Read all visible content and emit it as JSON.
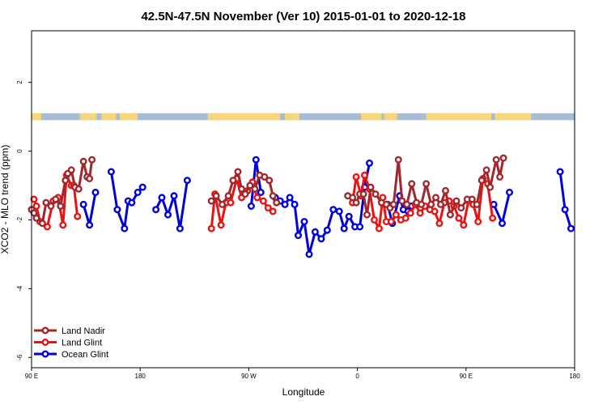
{
  "chart_data": {
    "type": "line",
    "title": "42.5N-47.5N November (Ver 10)   2015-01-01 to 2020-12-18",
    "xlabel": "Longitude",
    "ylabel": "XCO2 - MLO trend (ppm)",
    "xlim": [
      0,
      450
    ],
    "ylim": [
      -6.3,
      3.5
    ],
    "x_axis_note": "x values are degrees east measured from 90E; the axis wraps 90E → 180 → 90W → 0 → 90E → 180",
    "x_ticks": [
      {
        "value": 0,
        "label": "90 E"
      },
      {
        "value": 90,
        "label": "180"
      },
      {
        "value": 180,
        "label": "90 W"
      },
      {
        "value": 270,
        "label": "0"
      },
      {
        "value": 360,
        "label": "90 E"
      },
      {
        "value": 450,
        "label": "180"
      }
    ],
    "y_ticks": [
      {
        "value": -6,
        "label": "-6"
      },
      {
        "value": -4,
        "label": "-4"
      },
      {
        "value": -2,
        "label": "-2"
      },
      {
        "value": 0,
        "label": "0"
      },
      {
        "value": 2,
        "label": "2"
      }
    ],
    "surface_band": {
      "y_range": [
        0.9,
        1.1
      ],
      "land_color": "#f5d67a",
      "ocean_color": "#a8bcd8",
      "land_segments": [
        [
          0,
          8
        ],
        [
          40,
          54
        ],
        [
          58,
          70
        ],
        [
          73,
          88
        ],
        [
          146,
          206
        ],
        [
          210,
          222
        ],
        [
          273,
          290
        ],
        [
          292,
          303
        ],
        [
          327,
          381
        ],
        [
          384,
          414
        ]
      ]
    },
    "legend_position": "bottom-left",
    "series": [
      {
        "name": "Land Nadir",
        "color": "#a0282d",
        "segments": [
          [
            [
              0,
              -1.7
            ],
            [
              2,
              -1.8
            ],
            [
              4,
              -1.95
            ],
            [
              9,
              -2.1
            ],
            [
              12,
              -1.5
            ],
            [
              16,
              -1.6
            ],
            [
              20,
              -1.4
            ],
            [
              24,
              -1.6
            ],
            [
              28,
              -0.85
            ],
            [
              30,
              -0.65
            ],
            [
              33,
              -0.55
            ],
            [
              36,
              -1.05
            ],
            [
              39,
              -1.1
            ],
            [
              43,
              -0.3
            ],
            [
              46,
              -0.75
            ],
            [
              48,
              -0.8
            ],
            [
              50,
              -0.25
            ]
          ],
          [
            [
              149,
              -1.45
            ],
            [
              153,
              -1.3
            ],
            [
              158,
              -1.55
            ],
            [
              163,
              -1.3
            ],
            [
              167,
              -0.85
            ],
            [
              171,
              -0.6
            ],
            [
              174,
              -1.1
            ],
            [
              177,
              -1.25
            ],
            [
              181,
              -1.0
            ],
            [
              185,
              -1.1
            ],
            [
              189,
              -0.7
            ],
            [
              193,
              -0.75
            ],
            [
              197,
              -0.85
            ],
            [
              200,
              -1.3
            ],
            [
              203,
              -1.5
            ]
          ],
          [
            [
              262,
              -1.3
            ],
            [
              266,
              -1.35
            ],
            [
              269,
              -1.5
            ],
            [
              272,
              -1.25
            ],
            [
              275,
              -1.25
            ],
            [
              278,
              -1.85
            ],
            [
              281,
              -1.05
            ],
            [
              285,
              -1.25
            ],
            [
              290,
              -1.5
            ],
            [
              294,
              -1.55
            ],
            [
              297,
              -1.65
            ],
            [
              300,
              -1.55
            ],
            [
              304,
              -0.25
            ],
            [
              307,
              -1.45
            ],
            [
              311,
              -1.55
            ],
            [
              315,
              -0.95
            ],
            [
              319,
              -1.5
            ],
            [
              323,
              -1.55
            ],
            [
              327,
              -0.95
            ],
            [
              331,
              -1.55
            ],
            [
              335,
              -1.35
            ],
            [
              339,
              -1.55
            ],
            [
              343,
              -1.15
            ],
            [
              347,
              -1.85
            ],
            [
              352,
              -1.45
            ],
            [
              356,
              -1.65
            ],
            [
              361,
              -1.4
            ],
            [
              365,
              -1.4
            ],
            [
              369,
              -1.55
            ],
            [
              373,
              -0.85
            ],
            [
              377,
              -0.55
            ],
            [
              380,
              -1.05
            ],
            [
              385,
              -0.25
            ],
            [
              388,
              -0.75
            ],
            [
              391,
              -0.2
            ]
          ]
        ]
      },
      {
        "name": "Land Glint",
        "color": "#ee1111",
        "segments": [
          [
            [
              2,
              -1.4
            ],
            [
              4,
              -1.6
            ],
            [
              7,
              -2.05
            ],
            [
              13,
              -2.2
            ],
            [
              18,
              -1.45
            ],
            [
              22,
              -1.35
            ],
            [
              26,
              -2.15
            ],
            [
              29,
              -0.7
            ],
            [
              33,
              -1.0
            ],
            [
              35,
              -1.0
            ],
            [
              38,
              -1.9
            ]
          ],
          [
            [
              149,
              -2.25
            ],
            [
              152,
              -1.25
            ],
            [
              157,
              -2.15
            ],
            [
              161,
              -1.5
            ],
            [
              165,
              -1.5
            ],
            [
              170,
              -0.8
            ],
            [
              174,
              -1.35
            ],
            [
              179,
              -1.15
            ],
            [
              183,
              -0.9
            ],
            [
              187,
              -1.35
            ],
            [
              192,
              -1.45
            ],
            [
              196,
              -1.65
            ],
            [
              200,
              -1.75
            ]
          ],
          [
            [
              266,
              -1.5
            ],
            [
              269,
              -0.75
            ],
            [
              273,
              -1.3
            ],
            [
              276,
              -0.7
            ],
            [
              280,
              -1.1
            ],
            [
              284,
              -2.0
            ],
            [
              288,
              -2.25
            ],
            [
              291,
              -1.35
            ],
            [
              294,
              -2.05
            ],
            [
              298,
              -2.05
            ],
            [
              302,
              -1.85
            ],
            [
              306,
              -2.0
            ],
            [
              310,
              -1.95
            ],
            [
              314,
              -1.8
            ],
            [
              318,
              -1.55
            ],
            [
              322,
              -1.8
            ],
            [
              326,
              -1.6
            ],
            [
              330,
              -1.7
            ],
            [
              334,
              -1.75
            ],
            [
              338,
              -2.1
            ],
            [
              342,
              -1.5
            ],
            [
              346,
              -1.45
            ],
            [
              350,
              -1.6
            ],
            [
              354,
              -1.95
            ],
            [
              358,
              -2.15
            ],
            [
              362,
              -1.45
            ],
            [
              366,
              -1.55
            ],
            [
              370,
              -2.05
            ],
            [
              374,
              -0.8
            ],
            [
              378,
              -0.95
            ],
            [
              382,
              -1.95
            ]
          ]
        ]
      },
      {
        "name": "Ocean Glint",
        "color": "#0000dd",
        "segments": [
          [
            [
              43,
              -1.55
            ],
            [
              48,
              -2.15
            ],
            [
              53,
              -1.2
            ]
          ],
          [
            [
              66,
              -0.6
            ],
            [
              71,
              -1.7
            ],
            [
              77,
              -2.25
            ],
            [
              80,
              -1.45
            ],
            [
              83,
              -1.5
            ],
            [
              88,
              -1.2
            ],
            [
              92,
              -1.05
            ]
          ],
          [
            [
              103,
              -1.7
            ],
            [
              108,
              -1.35
            ],
            [
              113,
              -1.85
            ],
            [
              118,
              -1.3
            ],
            [
              123,
              -2.25
            ],
            [
              129,
              -0.85
            ]
          ],
          [
            [
              182,
              -1.6
            ],
            [
              186,
              -0.25
            ],
            [
              190,
              -1.2
            ]
          ],
          [
            [
              202,
              -1.35
            ],
            [
              206,
              -1.45
            ],
            [
              210,
              -1.55
            ],
            [
              214,
              -1.35
            ],
            [
              218,
              -1.55
            ],
            [
              221,
              -2.45
            ],
            [
              226,
              -2.05
            ],
            [
              230,
              -3.0
            ],
            [
              235,
              -2.35
            ],
            [
              240,
              -2.55
            ],
            [
              245,
              -2.3
            ],
            [
              250,
              -1.7
            ],
            [
              255,
              -1.75
            ],
            [
              259,
              -2.25
            ],
            [
              263,
              -1.9
            ],
            [
              268,
              -2.2
            ],
            [
              272,
              -2.2
            ],
            [
              276,
              -1.05
            ],
            [
              280,
              -0.35
            ]
          ],
          [
            [
              295,
              -1.55
            ],
            [
              299,
              -2.1
            ],
            [
              305,
              -1.3
            ],
            [
              308,
              -1.7
            ],
            [
              312,
              -1.75
            ],
            [
              315,
              -1.6
            ],
            [
              319,
              -1.55
            ]
          ],
          [
            [
              383,
              -1.55
            ],
            [
              390,
              -2.1
            ],
            [
              396,
              -1.2
            ]
          ],
          [
            [
              438,
              -0.6
            ],
            [
              442,
              -1.7
            ],
            [
              447,
              -2.25
            ]
          ]
        ]
      }
    ]
  }
}
